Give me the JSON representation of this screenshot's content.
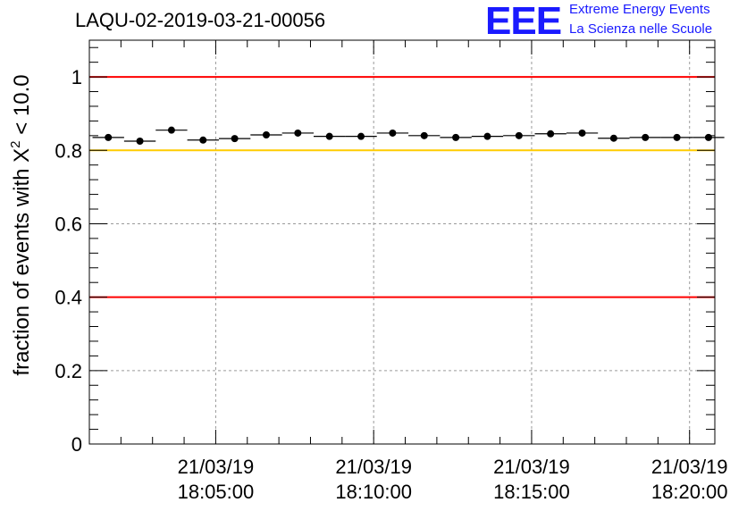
{
  "chart_data": {
    "type": "scatter",
    "title": "LAQU-02-2019-03-21-00056",
    "ylabel_main": "fraction of events with ",
    "ylabel_symbol": "X",
    "ylabel_sup": "2",
    "ylabel_tail": " < 10.0",
    "ylim": [
      0,
      1.1
    ],
    "yticks": [
      0,
      0.2,
      0.4,
      0.6,
      0.8,
      1
    ],
    "ytick_labels": [
      "0",
      "0.2",
      "0.4",
      "0.6",
      "0.8",
      "1"
    ],
    "x_unit": "minutes since 18:00:00",
    "xlim": [
      1.0,
      20.8
    ],
    "xticks": [
      {
        "x": 5,
        "date": "21/03/19",
        "time": "18:05:00"
      },
      {
        "x": 10,
        "date": "21/03/19",
        "time": "18:10:00"
      },
      {
        "x": 15,
        "date": "21/03/19",
        "time": "18:15:00"
      },
      {
        "x": 20,
        "date": "21/03/19",
        "time": "18:20:00"
      }
    ],
    "bin_width": 1.0,
    "x": [
      1.6,
      2.6,
      3.6,
      4.6,
      5.6,
      6.6,
      7.6,
      8.6,
      9.6,
      10.6,
      11.6,
      12.6,
      13.6,
      14.6,
      15.6,
      16.6,
      17.6,
      18.6,
      19.6,
      20.6
    ],
    "values": [
      0.835,
      0.825,
      0.855,
      0.828,
      0.832,
      0.842,
      0.847,
      0.838,
      0.838,
      0.847,
      0.84,
      0.835,
      0.838,
      0.84,
      0.845,
      0.847,
      0.833,
      0.835,
      0.835,
      0.835
    ],
    "reference_lines": [
      {
        "y": 1.0,
        "color": "#ff0000"
      },
      {
        "y": 0.8,
        "color": "#ffcc00"
      },
      {
        "y": 0.4,
        "color": "#ff0000"
      }
    ],
    "grid": true
  },
  "logo": {
    "mark": "EEE",
    "line1": "Extreme Energy Events",
    "line2": "La Scienza nelle Scuole"
  }
}
